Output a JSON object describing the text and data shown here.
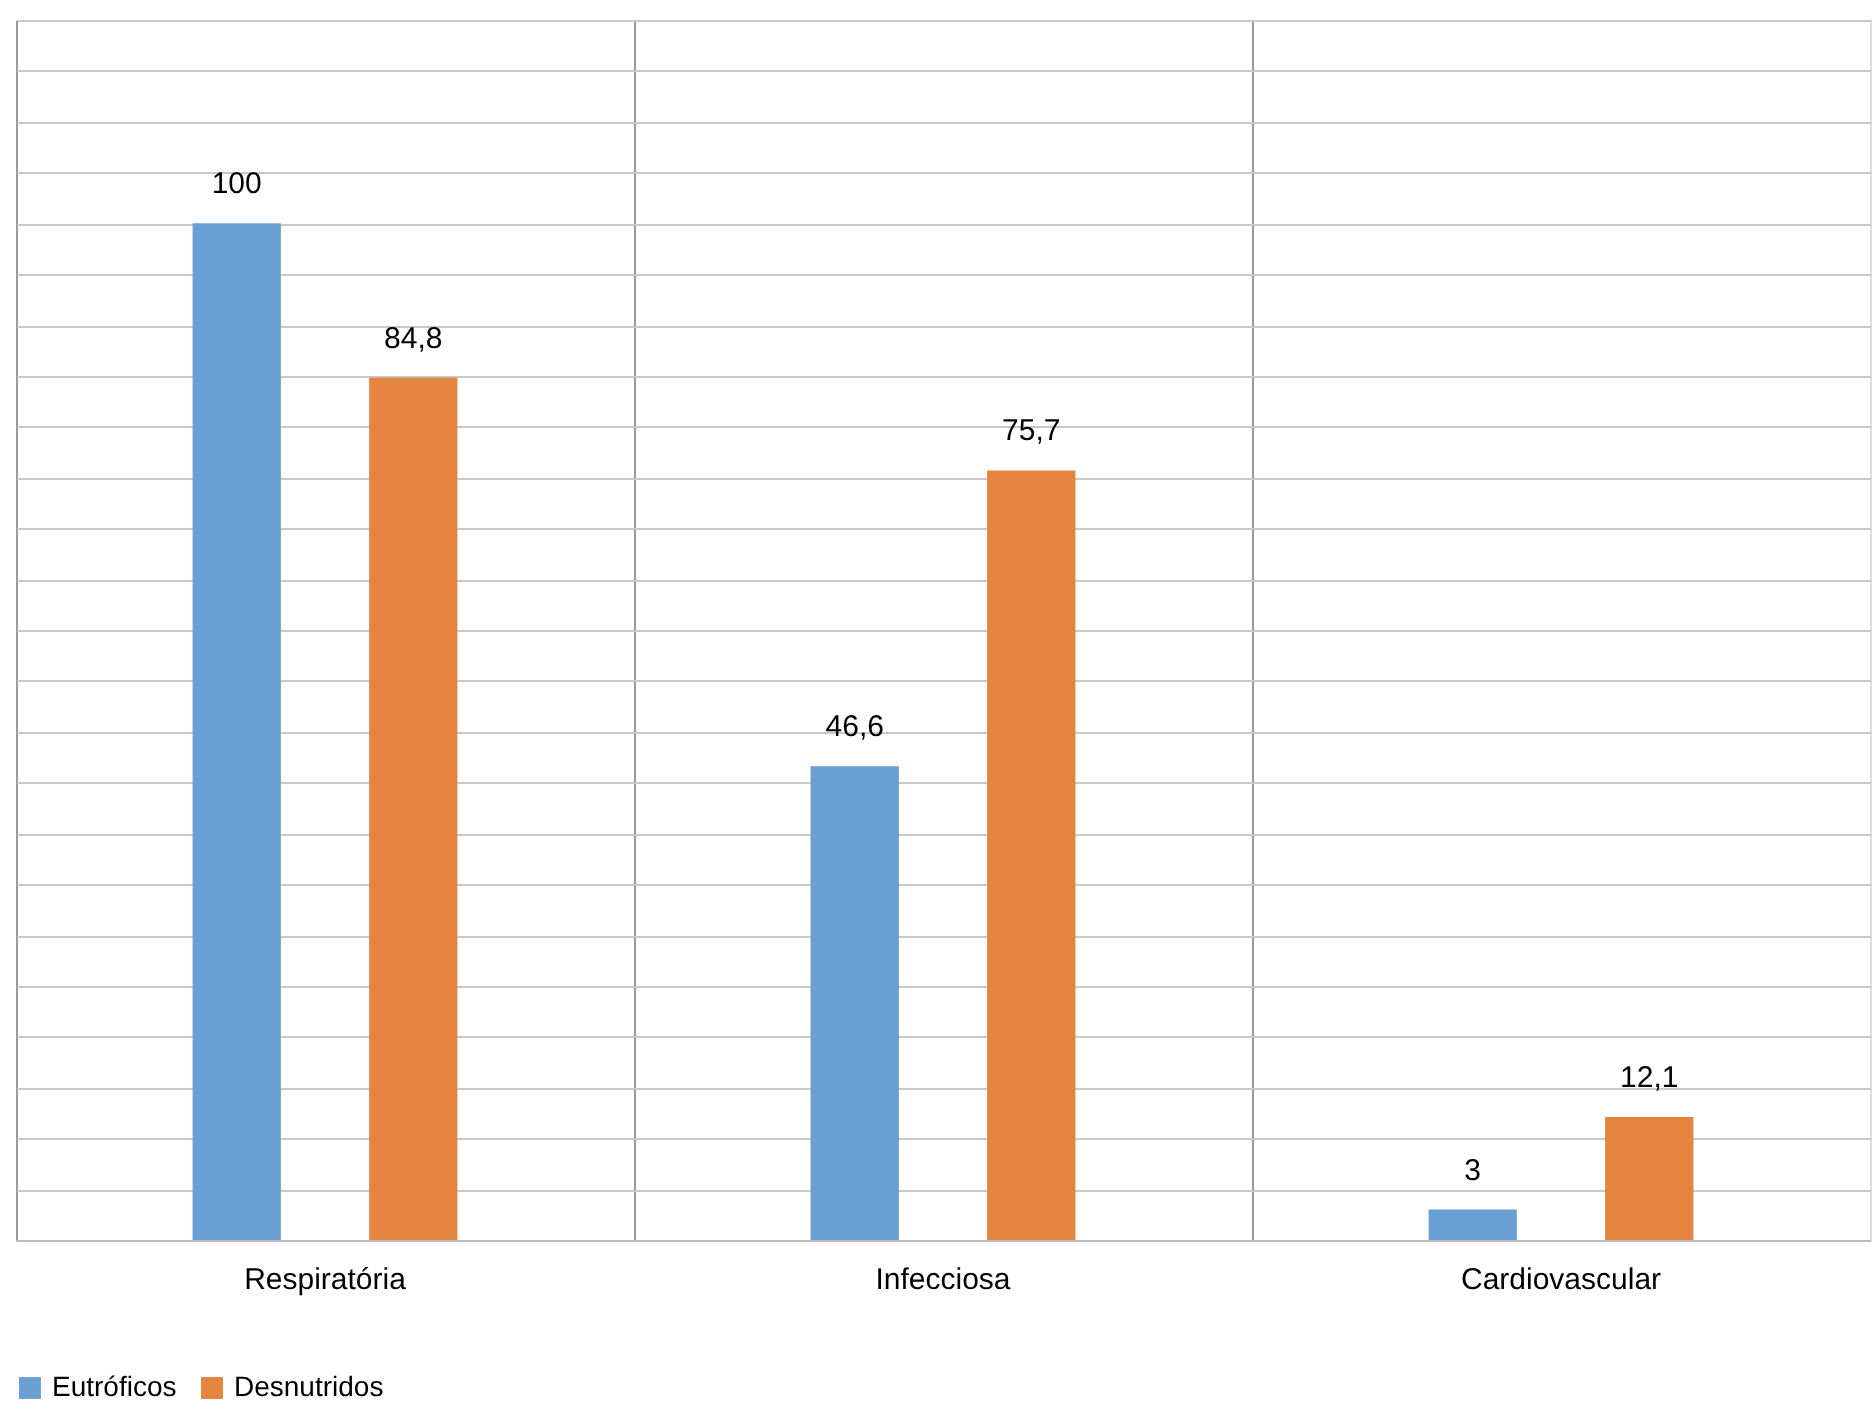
{
  "chart_data": {
    "type": "bar",
    "categories": [
      "Respiratória",
      "Infecciosa",
      "Cardiovascular"
    ],
    "series": [
      {
        "name": "Eutróficos",
        "color": "#6a9fd4",
        "values": [
          100,
          46.6,
          3
        ],
        "value_labels": [
          "100",
          "46,6",
          "3"
        ]
      },
      {
        "name": "Desnutridos",
        "color": "#e5843f",
        "values": [
          84.8,
          75.7,
          12.1
        ],
        "value_labels": [
          "84,8",
          "75,7",
          "12,1"
        ]
      }
    ],
    "ylim": [
      0,
      120
    ],
    "tick_labels": "x",
    "grid": true,
    "legend": "bottom",
    "data_labels": false
  }
}
